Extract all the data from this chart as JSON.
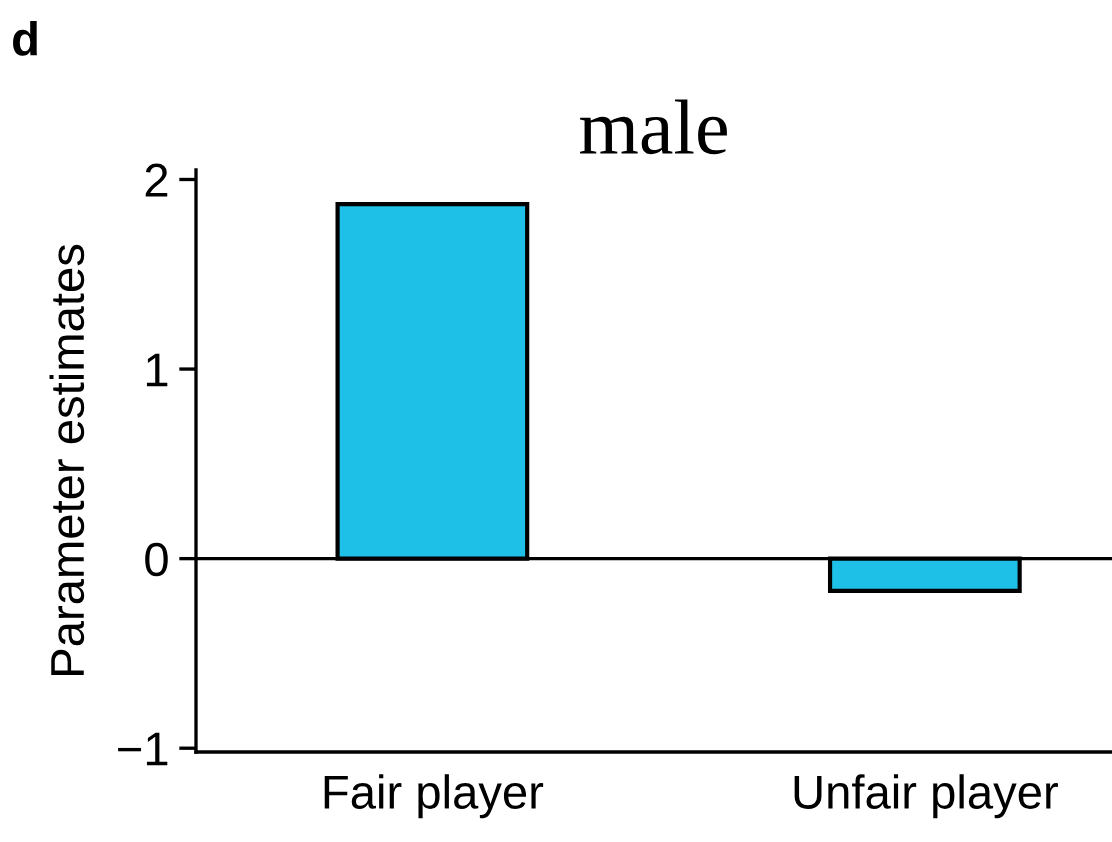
{
  "chart_data": {
    "type": "bar",
    "title": "male",
    "ylabel": "Parameter estimates",
    "annotations": [
      "d"
    ],
    "categories": [
      "Fair player",
      "Unfair player"
    ],
    "series": [
      {
        "color": "#1ec0e8",
        "values": [
          1.87,
          -0.17
        ]
      }
    ],
    "ylim": [
      -1.02,
      2.05
    ],
    "yticks": [
      {
        "value": -1,
        "label": "−1"
      },
      0,
      1,
      2
    ],
    "ref_lines": [
      {
        "axis": "y",
        "value": 0,
        "color": "#000000"
      }
    ],
    "grid": false,
    "legend": false
  }
}
